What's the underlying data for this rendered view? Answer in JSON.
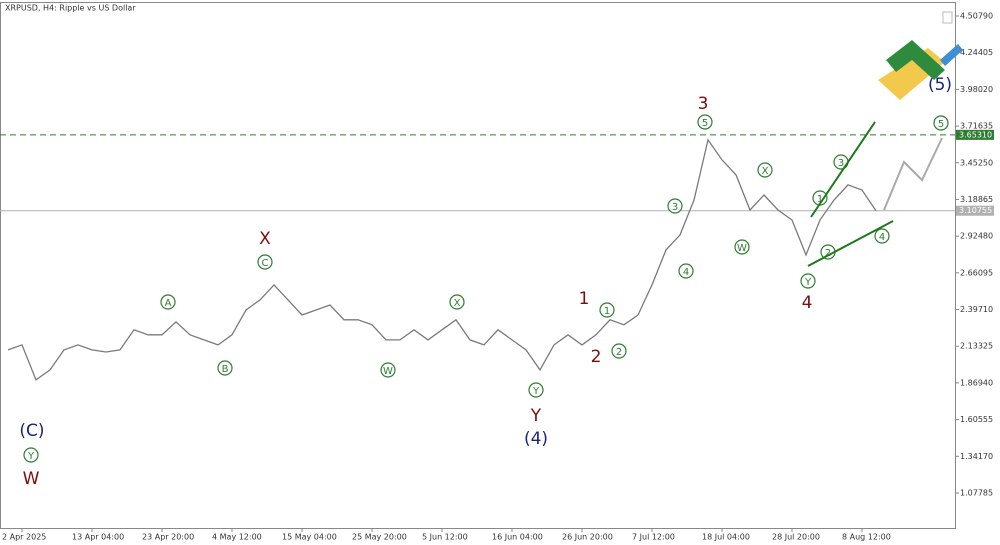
{
  "chart_data": {
    "type": "line",
    "title": "XRPUSD, H4:  Ripple vs US Dollar",
    "categories": [
      null,
      "2 Apr 2025",
      null,
      null,
      null,
      null,
      "13 Apr 04:00",
      null,
      null,
      null,
      null,
      "23 Apr 20:00",
      null,
      null,
      null,
      null,
      "4 May 12:00",
      null,
      null,
      null,
      null,
      "15 May 04:00",
      null,
      null,
      null,
      null,
      "25 May 20:00",
      null,
      null,
      null,
      null,
      "5 Jun 12:00",
      null,
      null,
      null,
      null,
      "16 Jun 04:00",
      null,
      null,
      null,
      null,
      "26 Jun 20:00",
      null,
      null,
      null,
      null,
      "7 Jul 12:00",
      null,
      null,
      null,
      null,
      "18 Jul 04:00",
      null,
      null,
      null,
      null,
      "28 Jul 20:00",
      null,
      null,
      null,
      null,
      "8 Aug 12:00",
      null
    ],
    "series": [
      {
        "name": "XRPUSD",
        "color": "#7a7a7a",
        "values": [
          2.107,
          2.143,
          1.891,
          1.963,
          2.107,
          2.143,
          2.107,
          2.092,
          2.107,
          2.251,
          2.215,
          2.215,
          2.308,
          2.215,
          2.179,
          2.143,
          2.215,
          2.394,
          2.466,
          2.574,
          2.466,
          2.358,
          2.394,
          2.43,
          2.323,
          2.323,
          2.287,
          2.179,
          2.179,
          2.251,
          2.179,
          2.251,
          2.323,
          2.179,
          2.143,
          2.251,
          2.179,
          2.107,
          1.963,
          2.143,
          2.215,
          2.143,
          2.215,
          2.323,
          2.287,
          2.358,
          2.574,
          2.826,
          2.934,
          3.185,
          3.617,
          3.473,
          3.365,
          3.113,
          3.221,
          3.113,
          3.041,
          2.79,
          3.041,
          3.185,
          3.293,
          3.257,
          3.107
        ]
      }
    ],
    "ylim": [
      0.826,
      4.623
    ],
    "yticks": [
      {
        "value": 4.5079,
        "label": "4.50790"
      },
      4.24405,
      {
        "value": 3.9802,
        "label": "3.98020"
      },
      3.71635,
      {
        "value": 3.4525,
        "label": "3.45250"
      },
      3.18865,
      {
        "value": 2.9248,
        "label": "2.92480"
      },
      2.66095,
      {
        "value": 2.3971,
        "label": "2.39710"
      },
      2.13325,
      {
        "value": 1.8694,
        "label": "1.86940"
      },
      1.60555,
      {
        "value": 1.3417,
        "label": "1.34170"
      },
      1.07785
    ],
    "hlines": [
      {
        "value": 3.6531,
        "label": "3.65310",
        "color": "#2e7d32",
        "dashed": true
      },
      {
        "value": 3.10755,
        "label": "3.10755",
        "color": "#b0b0b0",
        "dashed": false
      }
    ],
    "annotations": [
      {
        "text": "(C)",
        "color": "#1a237e",
        "circle": false
      },
      {
        "text": "Y",
        "color": "#2e7d32",
        "circle": true
      },
      {
        "text": "W",
        "color": "#7b0d0d",
        "circle": false
      },
      {
        "text": "A",
        "color": "#2e7d32",
        "circle": true
      },
      {
        "text": "B",
        "color": "#2e7d32",
        "circle": true
      },
      {
        "text": "X",
        "color": "#7b0d0d",
        "circle": false
      },
      {
        "text": "C",
        "color": "#2e7d32",
        "circle": true
      },
      {
        "text": "W",
        "color": "#2e7d32",
        "circle": true
      },
      {
        "text": "X",
        "color": "#2e7d32",
        "circle": true
      },
      {
        "text": "Y",
        "color": "#2e7d32",
        "circle": true
      },
      {
        "text": "Y",
        "color": "#7b0d0d",
        "circle": false
      },
      {
        "text": "(4)",
        "color": "#1a237e",
        "circle": false
      },
      {
        "text": "1",
        "color": "#7b0d0d",
        "circle": false
      },
      {
        "text": "1",
        "color": "#2e7d32",
        "circle": true
      },
      {
        "text": "2",
        "color": "#7b0d0d",
        "circle": false
      },
      {
        "text": "2",
        "color": "#2e7d32",
        "circle": true
      },
      {
        "text": "3",
        "color": "#2e7d32",
        "circle": true
      },
      {
        "text": "4",
        "color": "#2e7d32",
        "circle": true
      },
      {
        "text": "3",
        "color": "#7b0d0d",
        "circle": false
      },
      {
        "text": "5",
        "color": "#2e7d32",
        "circle": true
      },
      {
        "text": "X",
        "color": "#2e7d32",
        "circle": true
      },
      {
        "text": "W",
        "color": "#2e7d32",
        "circle": true
      },
      {
        "text": "1",
        "color": "#2e7d32",
        "circle": true
      },
      {
        "text": "3",
        "color": "#2e7d32",
        "circle": true
      },
      {
        "text": "2",
        "color": "#2e7d32",
        "circle": true
      },
      {
        "text": "4",
        "color": "#2e7d32",
        "circle": true
      },
      {
        "text": "Y",
        "color": "#2e7d32",
        "circle": true
      },
      {
        "text": "4",
        "color": "#7b0d0d",
        "circle": false
      },
      {
        "text": "5",
        "color": "#2e7d32",
        "circle": true
      },
      {
        "text": "(5)",
        "color": "#1a237e",
        "circle": false
      }
    ]
  }
}
